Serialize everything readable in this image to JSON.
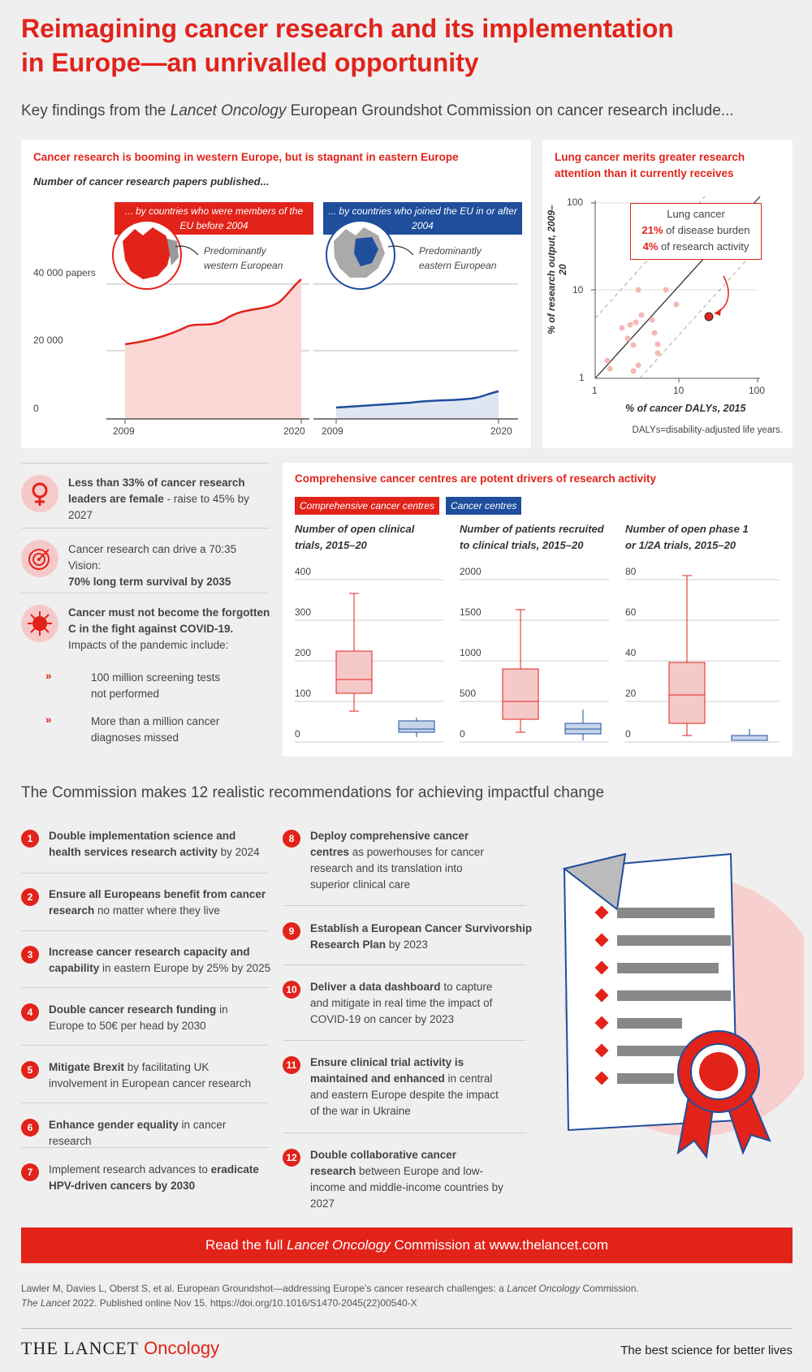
{
  "header": {
    "title_line1": "Reimagining cancer research and its implementation",
    "title_line2": "in Europe—an unrivalled opportunity",
    "subtitle_pre": "Key findings from the ",
    "subtitle_em": "Lancet Oncology",
    "subtitle_post": " European Groundshot Commission on cancer research include..."
  },
  "papers_panel": {
    "title": "Cancer research is booming in western Europe, but is stagnant in eastern Europe",
    "subtitle": "Number of cancer research papers published...",
    "banner_west": "... by countries who were members of the EU before 2004",
    "banner_east": "... by countries who joined the EU in or after 2004",
    "label_west": "Predominantly western European",
    "label_east": "Predominantly eastern European",
    "y_labels": [
      "40 000 papers",
      "20 000",
      "0"
    ],
    "x_labels_west": [
      "2009",
      "2020"
    ],
    "x_labels_east": [
      "2009",
      "2020"
    ],
    "colors": {
      "west": "#e2231a",
      "east": "#1e4e9c"
    }
  },
  "lung_panel": {
    "title_line1": "Lung cancer merits greater research",
    "title_line2": "attention than it currently receives",
    "box_title": "Lung cancer",
    "box_line1_value": "21%",
    "box_line1_text": " of disease burden",
    "box_line2_value": "4%",
    "box_line2_text": " of research activity",
    "ylabel": "% of research output, 2009–20",
    "xlabel": "% of cancer DALYs, 2015",
    "y_ticks": [
      "100",
      "10",
      "1"
    ],
    "x_ticks": [
      "1",
      "10",
      "100"
    ],
    "footnote": "DALYs=disability-adjusted life years."
  },
  "left_facts": {
    "fact1_bold": "Less than 33% of cancer research leaders are female",
    "fact1_rest": " - raise to 45% by 2027",
    "fact2_line1": "Cancer research can drive a 70:35 Vision:",
    "fact2_bold": "70% long term survival by 2035",
    "fact3_bold1": "Cancer must not become the forgotten",
    "fact3_bold2": "C in the fight against COVID-19.",
    "fact3_line3": "Impacts of the pandemic include:",
    "bullet1_line1": "100 million screening tests",
    "bullet1_line2": "not performed",
    "bullet2_line1": "More than a million cancer",
    "bullet2_line2": "diagnoses missed"
  },
  "centres_panel": {
    "title": "Comprehensive cancer centres are potent drivers of research activity",
    "legend_ccc": "Comprehensive cancer centres",
    "legend_cc": "Cancer centres",
    "chart1_title_l1": "Number of open clinical",
    "chart1_title_l2": "trials, 2015–20",
    "chart2_title_l1": "Number of patients recruited",
    "chart2_title_l2": "to clinical trials, 2015–20",
    "chart3_title_l1": "Number of open phase 1",
    "chart3_title_l2": "or 1/2A trials, 2015–20",
    "chart1_ticks": [
      "400",
      "300",
      "200",
      "100",
      "0"
    ],
    "chart2_ticks": [
      "2000",
      "1500",
      "1000",
      "500",
      "0"
    ],
    "chart3_ticks": [
      "80",
      "60",
      "40",
      "20",
      "0"
    ]
  },
  "recommendations": {
    "heading": "The Commission makes 12 realistic recommendations for achieving impactful change",
    "items": [
      {
        "num": "1",
        "bold": "Double implementation science and health services research activity",
        "rest": " by 2024"
      },
      {
        "num": "2",
        "bold": "Ensure all Europeans benefit from cancer research",
        "rest": " no matter where they live"
      },
      {
        "num": "3",
        "bold": "Increase cancer research capacity and capability",
        "rest": " in eastern Europe by 25% by 2025"
      },
      {
        "num": "4",
        "bold": "Double cancer research funding",
        "rest": " in Europe to 50€ per head by 2030"
      },
      {
        "num": "5",
        "bold": "Mitigate Brexit",
        "rest": " by facilitating UK involvement in European cancer research"
      },
      {
        "num": "6",
        "bold": "Enhance gender equality",
        "rest": " in cancer research"
      },
      {
        "num": "7",
        "pre": "Implement research advances to ",
        "bold": "eradicate HPV-driven cancers by 2030"
      },
      {
        "num": "8",
        "bold": "Deploy comprehensive cancer centres",
        "rest": " as powerhouses for cancer research and its translation into superior clinical care"
      },
      {
        "num": "9",
        "bold": "Establish a European Cancer Survivorship Research Plan",
        "rest": " by 2023"
      },
      {
        "num": "10",
        "bold": "Deliver a data dashboard",
        "rest": " to capture and mitigate in real time the impact of COVID-19 on cancer by 2023"
      },
      {
        "num": "11",
        "bold": "Ensure clinical trial activity is maintained and enhanced",
        "rest": " in central and eastern Europe despite the impact of the war in Ukraine"
      },
      {
        "num": "12",
        "bold": "Double collaborative cancer research",
        "rest": " between Europe and low-income and middle-income countries by 2027"
      }
    ]
  },
  "cta": {
    "pre": "Read the full ",
    "em": "Lancet Oncology",
    "post": " Commission at www.thelancet.com"
  },
  "reference": {
    "line1_pre": "Lawler M, Davies L, Oberst S, et al. European Groundshot—addressing Europe’s cancer research challenges: a ",
    "line1_em": "Lancet Oncology",
    "line1_post": " Commission.",
    "line2_em": "The Lancet",
    "line2_post": " 2022. Published online Nov 15. https://doi.org/10.1016/S1470-2045(22)00540-X"
  },
  "footer": {
    "brand": "THE LANCET",
    "brand_sub": "Oncology",
    "tagline": "The best science for better lives"
  }
}
